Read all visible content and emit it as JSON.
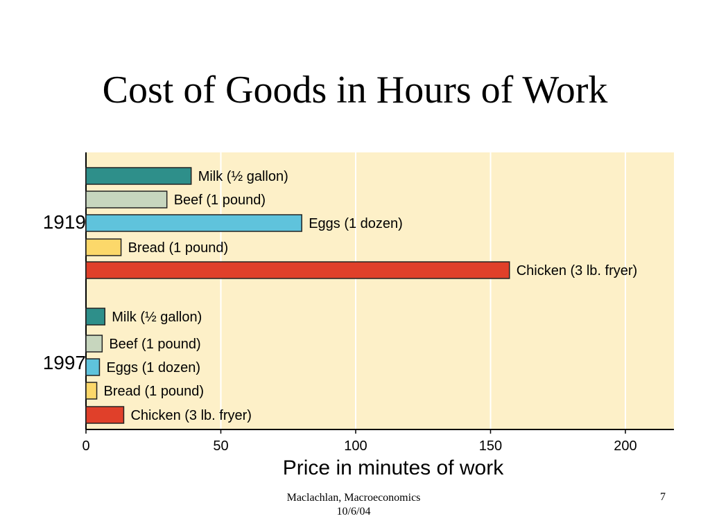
{
  "slide": {
    "title": "Cost of Goods in Hours of Work",
    "footer_author": "Maclachlan, Macroeconomics",
    "footer_date": "10/6/04",
    "page_number": "7"
  },
  "chart_data": {
    "type": "bar",
    "orientation": "horizontal",
    "xlabel": "Price in minutes of work",
    "xlim": [
      0,
      218
    ],
    "xticks": [
      0,
      50,
      100,
      150,
      200
    ],
    "grid": true,
    "groups": [
      {
        "name": "1919",
        "bars": [
          {
            "label": "Milk (½ gallon)",
            "value": 39,
            "color": "#2e8f8a"
          },
          {
            "label": "Beef (1 pound)",
            "value": 30,
            "color": "#c7d6be"
          },
          {
            "label": "Eggs (1 dozen)",
            "value": 80,
            "color": "#5fc3dc"
          },
          {
            "label": "Bread (1 pound)",
            "value": 13,
            "color": "#fcd86a"
          },
          {
            "label": "Chicken (3 lb. fryer)",
            "value": 157,
            "color": "#e0402a"
          }
        ]
      },
      {
        "name": "1997",
        "bars": [
          {
            "label": "Milk (½ gallon)",
            "value": 7,
            "color": "#2e8f8a"
          },
          {
            "label": "Beef (1 pound)",
            "value": 6,
            "color": "#c7d6be"
          },
          {
            "label": "Eggs (1 dozen)",
            "value": 5,
            "color": "#5fc3dc"
          },
          {
            "label": "Bread (1 pound)",
            "value": 4,
            "color": "#fcd86a"
          },
          {
            "label": "Chicken (3 lb. fryer)",
            "value": 14,
            "color": "#e0402a"
          }
        ]
      }
    ],
    "plot_background": "#fdf0c8"
  }
}
